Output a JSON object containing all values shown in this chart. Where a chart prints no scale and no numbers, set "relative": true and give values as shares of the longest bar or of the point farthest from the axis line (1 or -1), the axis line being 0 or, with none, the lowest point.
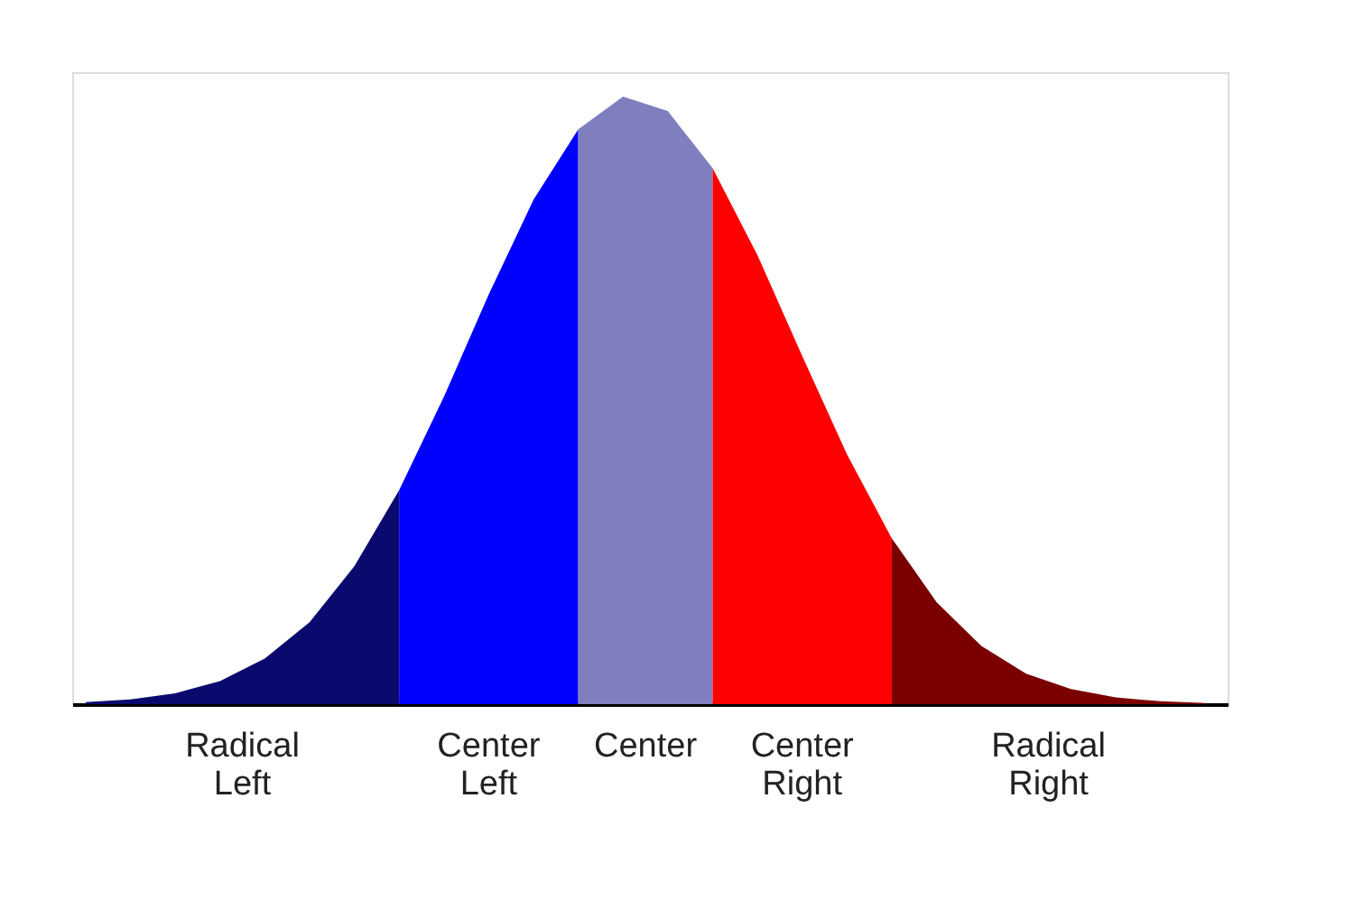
{
  "chart_data": {
    "type": "area",
    "relative": true,
    "legend": false,
    "grid": false,
    "tick_labels": false,
    "categories": [
      null,
      null,
      null,
      null,
      null,
      null,
      null,
      null,
      null,
      null,
      null,
      null,
      null,
      null,
      null,
      null,
      null,
      null,
      null,
      null,
      null,
      null,
      null,
      null,
      null,
      null
    ],
    "series": [
      {
        "name": "Radical Left",
        "color": "#0a0a6e",
        "values": [
          0.0032,
          0.0079,
          0.018,
          0.038,
          0.075,
          0.135,
          0.227,
          0.352,
          null,
          null,
          null,
          null,
          null,
          null,
          null,
          null,
          null,
          null,
          null,
          null,
          null,
          null,
          null,
          null,
          null,
          null
        ]
      },
      {
        "name": "Center Left",
        "color": "#0000ff",
        "values": [
          null,
          null,
          null,
          null,
          null,
          null,
          null,
          0.352,
          0.506,
          0.674,
          0.83,
          0.946,
          null,
          null,
          null,
          null,
          null,
          null,
          null,
          null,
          null,
          null,
          null,
          null,
          null,
          null
        ]
      },
      {
        "name": "Center",
        "color": "#7f7fbf",
        "values": [
          null,
          null,
          null,
          null,
          null,
          null,
          null,
          null,
          null,
          null,
          null,
          0.946,
          1,
          0.976,
          0.882,
          null,
          null,
          null,
          null,
          null,
          null,
          null,
          null,
          null,
          null,
          null
        ]
      },
      {
        "name": "Center Right",
        "color": "#ff0000",
        "values": [
          null,
          null,
          null,
          null,
          null,
          null,
          null,
          null,
          null,
          null,
          null,
          null,
          null,
          null,
          0.882,
          0.739,
          0.573,
          0.411,
          0.273,
          null,
          null,
          null,
          null,
          null,
          null,
          null
        ]
      },
      {
        "name": "Radical Right",
        "color": "#7a0000",
        "values": [
          null,
          null,
          null,
          null,
          null,
          null,
          null,
          null,
          null,
          null,
          null,
          null,
          null,
          null,
          null,
          null,
          null,
          null,
          0.273,
          0.168,
          0.096,
          0.05,
          0.025,
          0.011,
          0.0047,
          0.0018
        ]
      }
    ]
  }
}
